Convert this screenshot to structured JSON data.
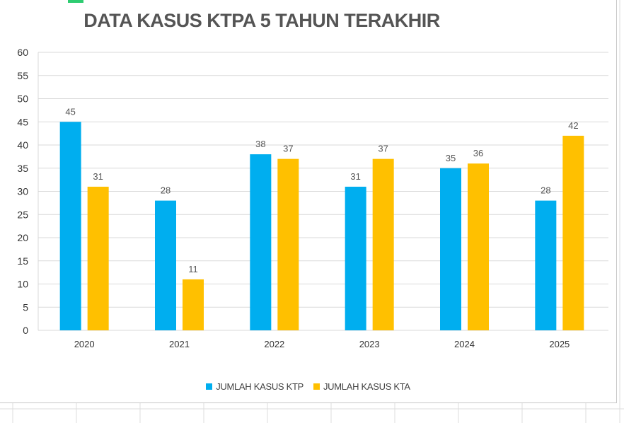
{
  "colors": {
    "ktp": "#00aeef",
    "kta": "#ffc000",
    "gridline": "#d9d9d9",
    "axis_text": "#333333",
    "label_text": "#555555",
    "title_text": "#555555"
  },
  "chart_data": {
    "type": "bar",
    "title": "DATA KASUS KTPA  5 TAHUN TERAKHIR",
    "categories": [
      "2020",
      "2021",
      "2022",
      "2023",
      "2024",
      "2025"
    ],
    "series": [
      {
        "name": "JUMLAH KASUS KTP",
        "values": [
          45,
          28,
          38,
          31,
          35,
          28
        ]
      },
      {
        "name": "JUMLAH KASUS KTA",
        "values": [
          31,
          11,
          37,
          37,
          36,
          42
        ]
      }
    ],
    "ylim": [
      0,
      60
    ],
    "yticks": [
      0,
      5,
      10,
      15,
      20,
      25,
      30,
      35,
      40,
      45,
      50,
      55,
      60
    ],
    "grid": true,
    "data_labels": true,
    "legend_position": "bottom"
  }
}
